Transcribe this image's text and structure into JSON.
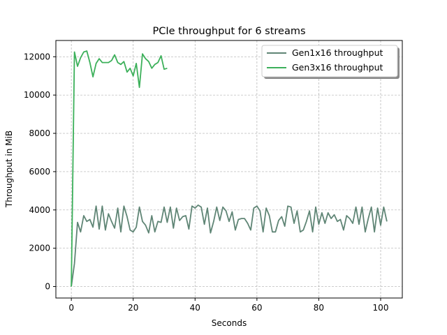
{
  "chart_data": {
    "type": "line",
    "title": "PCIe throughput for 6 streams",
    "xlabel": "Seconds",
    "ylabel": "Throughput in MiB",
    "xlim": [
      -5,
      107
    ],
    "ylim": [
      -600,
      12850
    ],
    "xticks": [
      0,
      20,
      40,
      60,
      80,
      100
    ],
    "yticks": [
      0,
      2000,
      4000,
      6000,
      8000,
      10000,
      12000
    ],
    "grid": true,
    "legend_position": "top-right",
    "series": [
      {
        "name": "Gen1x16 throughput",
        "color": "#5f8575",
        "x": [
          0,
          1,
          2,
          3,
          4,
          5,
          6,
          7,
          8,
          9,
          10,
          11,
          12,
          13,
          14,
          15,
          16,
          17,
          18,
          19,
          20,
          21,
          22,
          23,
          24,
          25,
          26,
          27,
          28,
          29,
          30,
          31,
          32,
          33,
          34,
          35,
          36,
          37,
          38,
          39,
          40,
          41,
          42,
          43,
          44,
          45,
          46,
          47,
          48,
          49,
          50,
          51,
          52,
          53,
          54,
          55,
          56,
          57,
          58,
          59,
          60,
          61,
          62,
          63,
          64,
          65,
          66,
          67,
          68,
          69,
          70,
          71,
          72,
          73,
          74,
          75,
          76,
          77,
          78,
          79,
          80,
          81,
          82,
          83,
          84,
          85,
          86,
          87,
          88,
          89,
          90,
          91,
          92,
          93,
          94,
          95,
          96,
          97,
          98,
          99,
          100,
          101,
          102
        ],
        "y": [
          0,
          1200,
          3350,
          2850,
          3700,
          3400,
          3500,
          3100,
          4200,
          3000,
          4200,
          2950,
          3800,
          3400,
          3050,
          4100,
          2850,
          4200,
          3650,
          2950,
          2850,
          3100,
          4150,
          3400,
          3200,
          2800,
          3700,
          2850,
          3400,
          3350,
          4150,
          3350,
          4150,
          3050,
          4100,
          3450,
          3650,
          3700,
          3000,
          4200,
          4100,
          4250,
          4150,
          3250,
          4100,
          2800,
          3400,
          4150,
          3450,
          4150,
          3950,
          3400,
          3900,
          2950,
          3500,
          3550,
          3550,
          3300,
          2950,
          4100,
          4200,
          3950,
          2850,
          4100,
          3700,
          2850,
          2850,
          3450,
          3650,
          3150,
          4200,
          4150,
          3300,
          3950,
          2850,
          2950,
          3400,
          3950,
          2850,
          4150,
          3250,
          3850,
          3300,
          3850,
          3550,
          3750,
          3400,
          3500,
          2950,
          3700,
          3550,
          3300,
          4150,
          3250,
          4150,
          2850,
          3550,
          4150,
          2850,
          4100,
          3200,
          4150,
          3400
        ]
      },
      {
        "name": "Gen3x16 throughput",
        "color": "#3cb05a",
        "x": [
          0,
          1,
          2,
          3,
          4,
          5,
          6,
          7,
          8,
          9,
          10,
          11,
          12,
          13,
          14,
          15,
          16,
          17,
          18,
          19,
          20,
          21,
          22,
          23,
          24,
          25,
          26,
          27,
          28,
          29,
          30,
          31
        ],
        "y": [
          0,
          12250,
          11500,
          11950,
          12250,
          12300,
          11700,
          10950,
          11650,
          11900,
          11700,
          11700,
          11700,
          11800,
          12100,
          11700,
          11600,
          11750,
          11200,
          11400,
          11000,
          11650,
          10400,
          12150,
          11900,
          11750,
          11400,
          11600,
          11700,
          12050,
          11350,
          11400
        ]
      }
    ]
  }
}
